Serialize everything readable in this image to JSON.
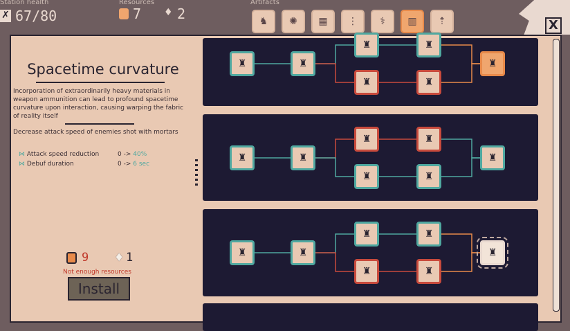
{
  "header": {
    "health_label": "Station health",
    "health_value": "67/80",
    "resources_label": "Resources",
    "orange_count": "7",
    "white_count": "2",
    "artifacts_label": "Artifacts",
    "artifacts": [
      {
        "icon": "♞"
      },
      {
        "icon": "✺"
      },
      {
        "icon": "▦"
      },
      {
        "icon": "⋮"
      },
      {
        "icon": "⚕"
      },
      {
        "icon": "▥",
        "selected": true
      },
      {
        "icon": "⇡"
      }
    ],
    "close_label": "X"
  },
  "detail": {
    "title": "Spacetime curvature",
    "description": "Incorporation of extraordinarily heavy materials in weapon ammunition can lead to profound spacetime curvature upon interaction, causing warping the fabric of reality itself",
    "effect": "Decrease attack speed of enemies shot with mortars",
    "stats": [
      {
        "label": "Attack speed reduction",
        "from": "0 ->",
        "to": "40%"
      },
      {
        "label": "Debuf duration",
        "from": "0 ->",
        "to": "6 sec"
      }
    ],
    "cost_orange": "9",
    "cost_white": "1",
    "warning": "Not enough resources",
    "install_label": "Install"
  },
  "colors": {
    "unlocked": "#4fa8a0",
    "locked": "#c84a3c",
    "selected": "#e88a4a",
    "warning": "#c0392b"
  },
  "trees": [
    {
      "nodes": [
        "teal",
        "teal",
        "teal",
        "red",
        "teal",
        "red",
        "orange"
      ]
    },
    {
      "nodes": [
        "teal",
        "teal",
        "red",
        "teal",
        "red",
        "teal",
        "teal"
      ]
    },
    {
      "nodes": [
        "teal",
        "teal",
        "teal",
        "red",
        "teal",
        "red",
        "sel"
      ]
    }
  ]
}
